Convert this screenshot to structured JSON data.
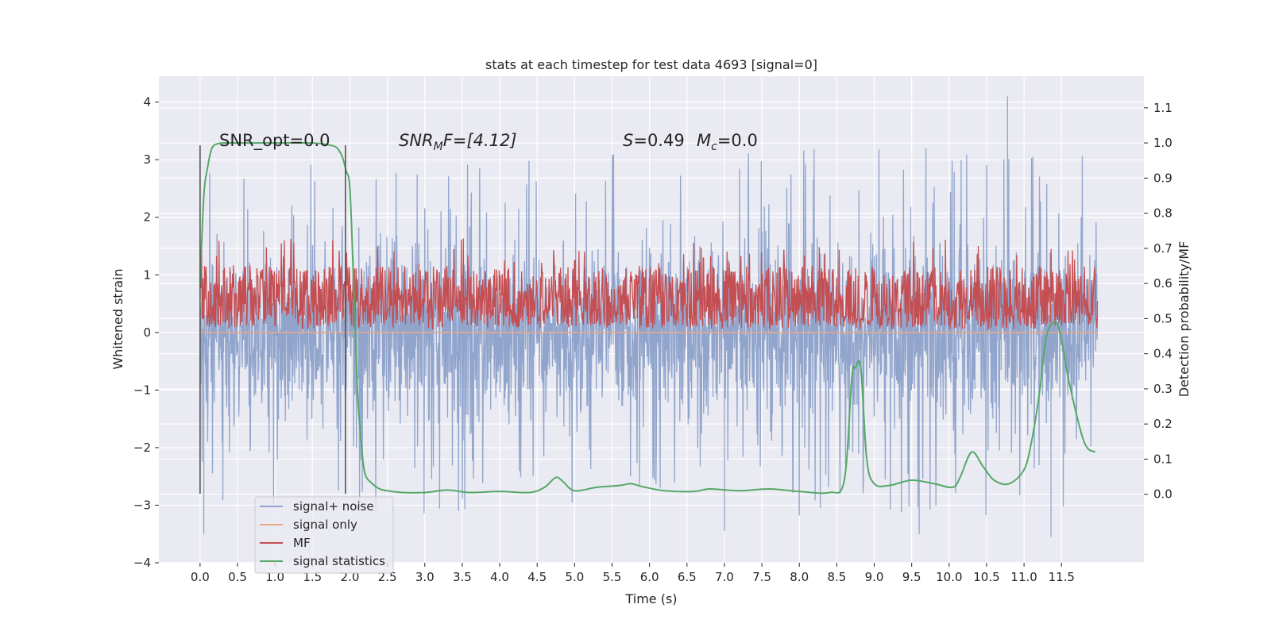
{
  "chart_data": {
    "type": "line",
    "title": "stats at each timestep for test data 4693 [signal=0]",
    "xlabel": "Time (s)",
    "ylabel_left": "Whitened strain",
    "ylabel_right": "Detection probability/MF",
    "xlim": [
      -0.55,
      12.6
    ],
    "ylim_left": [
      -4.0,
      4.45
    ],
    "ylim_right": [
      -0.195,
      1.19
    ],
    "x_ticks": [
      "0.0",
      "0.5",
      "1.0",
      "1.5",
      "2.0",
      "2.5",
      "3.0",
      "3.5",
      "4.0",
      "4.5",
      "5.0",
      "5.5",
      "6.0",
      "6.5",
      "7.0",
      "7.5",
      "8.0",
      "8.5",
      "9.0",
      "9.5",
      "10.0",
      "10.5",
      "11.0",
      "11.5"
    ],
    "y_ticks_left": [
      "−4",
      "−3",
      "−2",
      "−1",
      "0",
      "1",
      "2",
      "3",
      "4"
    ],
    "y_ticks_right": [
      "0.0",
      "0.1",
      "0.2",
      "0.3",
      "0.4",
      "0.5",
      "0.6",
      "0.7",
      "0.8",
      "0.9",
      "1.0",
      "1.1"
    ],
    "grid": true,
    "legend_position": "lower-left",
    "annotations": {
      "snr_opt": "SNR_opt=0.0",
      "snr_mf_sym": "SNR",
      "snr_mf_sub": "M",
      "snr_mf_rest": "F=[4.12]",
      "s_sym": "S",
      "s_rest": "=0.49",
      "mc_sym": "M",
      "mc_sub": "c",
      "mc_rest": "=0.0"
    },
    "window_markers": {
      "x": [
        0.0,
        1.94
      ],
      "y_range": [
        -2.8,
        3.25
      ]
    },
    "series": [
      {
        "name": "signal+ noise",
        "color": "#91a5cc",
        "axis": "left",
        "x_range": [
          0.0,
          11.98
        ],
        "typical_range": [
          -2.0,
          2.2
        ],
        "extremes": [
          -3.5,
          4.1
        ]
      },
      {
        "name": "signal only",
        "color": "#e8a78b",
        "axis": "left",
        "x": [
          0.0,
          11.98
        ],
        "y": [
          0.0,
          0.0
        ]
      },
      {
        "name": "MF",
        "color": "#c44e52",
        "axis": "right",
        "x_range": [
          0.0,
          11.98
        ],
        "typical_range": [
          0.48,
          0.65
        ],
        "extremes": [
          0.47,
          0.73
        ]
      },
      {
        "name": "signal statistics",
        "color": "#55a868",
        "axis": "right",
        "x": [
          0.0,
          0.05,
          0.1,
          0.15,
          0.2,
          0.3,
          0.5,
          1.0,
          1.5,
          1.7,
          1.8,
          1.85,
          1.9,
          1.95,
          2.0,
          2.05,
          2.1,
          2.15,
          2.2,
          2.3,
          2.4,
          2.5,
          2.7,
          3.0,
          3.3,
          3.6,
          4.0,
          4.4,
          4.6,
          4.75,
          4.85,
          5.0,
          5.3,
          5.6,
          5.75,
          5.9,
          6.2,
          6.6,
          6.8,
          7.2,
          7.6,
          8.0,
          8.4,
          8.6,
          8.7,
          8.75,
          8.82,
          8.9,
          9.0,
          9.2,
          9.5,
          9.8,
          10.05,
          10.15,
          10.3,
          10.45,
          10.6,
          10.8,
          11.0,
          11.1,
          11.2,
          11.3,
          11.42,
          11.5,
          11.6,
          11.8,
          11.95
        ],
        "y": [
          0.6,
          0.85,
          0.93,
          0.98,
          0.995,
          1.0,
          1.0,
          1.0,
          1.0,
          0.995,
          0.99,
          0.98,
          0.96,
          0.92,
          0.87,
          0.6,
          0.3,
          0.15,
          0.06,
          0.03,
          0.015,
          0.01,
          0.005,
          0.005,
          0.012,
          0.005,
          0.008,
          0.005,
          0.02,
          0.048,
          0.035,
          0.01,
          0.02,
          0.025,
          0.03,
          0.022,
          0.01,
          0.008,
          0.015,
          0.01,
          0.015,
          0.008,
          0.005,
          0.04,
          0.33,
          0.36,
          0.36,
          0.1,
          0.03,
          0.025,
          0.04,
          0.03,
          0.02,
          0.05,
          0.12,
          0.08,
          0.04,
          0.03,
          0.07,
          0.15,
          0.28,
          0.45,
          0.49,
          0.44,
          0.32,
          0.15,
          0.12
        ]
      }
    ]
  }
}
